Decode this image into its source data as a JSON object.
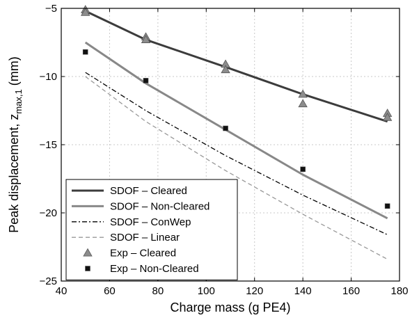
{
  "chart_data": {
    "type": "line",
    "xlabel": "Charge mass (g PE4)",
    "ylabel_main": "Peak displacement, z",
    "ylabel_sub": "max,1",
    "ylabel_unit": " (mm)",
    "xlim": [
      40,
      180
    ],
    "ylim": [
      -25,
      -5
    ],
    "x_ticks": [
      40,
      60,
      80,
      100,
      120,
      140,
      160,
      180
    ],
    "y_ticks": [
      -25,
      -20,
      -15,
      -10,
      -5
    ],
    "grid": true,
    "legend_position": "bottom-left",
    "series": [
      {
        "name": "SDOF – Cleared",
        "style": "solid",
        "color": "#3c3c3c",
        "x": [
          50,
          75,
          108,
          140,
          175
        ],
        "y": [
          -5.2,
          -7.3,
          -9.3,
          -11.3,
          -13.3
        ]
      },
      {
        "name": "SDOF – Non-Cleared",
        "style": "solid",
        "color": "#888888",
        "x": [
          50,
          75,
          108,
          140,
          175
        ],
        "y": [
          -7.5,
          -10.5,
          -13.9,
          -17.2,
          -20.4
        ]
      },
      {
        "name": "SDOF – ConWep",
        "style": "dashdot",
        "color": "#000000",
        "x": [
          50,
          75,
          108,
          140,
          175
        ],
        "y": [
          -9.7,
          -12.5,
          -15.8,
          -18.7,
          -21.6
        ]
      },
      {
        "name": "SDOF – Linear",
        "style": "dashed",
        "color": "#999999",
        "x": [
          50,
          75,
          108,
          140,
          175
        ],
        "y": [
          -10.0,
          -13.3,
          -16.9,
          -20.1,
          -23.4
        ]
      },
      {
        "name": "Exp – Cleared",
        "style": "marker-triangle",
        "color": "#8c8c8c",
        "x": [
          50,
          50,
          75,
          75,
          108,
          108,
          140,
          140,
          175,
          175
        ],
        "y": [
          -5.1,
          -5.3,
          -7.1,
          -7.3,
          -9.1,
          -9.5,
          -11.3,
          -12.0,
          -12.7,
          -13.0
        ]
      },
      {
        "name": "Exp – Non-Cleared",
        "style": "marker-square",
        "color": "#111111",
        "x": [
          50,
          75,
          108,
          140,
          175
        ],
        "y": [
          -8.2,
          -10.3,
          -13.8,
          -16.8,
          -19.5
        ]
      }
    ]
  }
}
